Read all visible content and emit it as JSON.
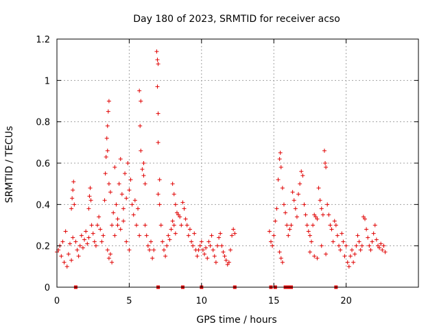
{
  "chart_data": {
    "type": "scatter",
    "title": "Day 180 of 2023, SRMTID for receiver acso",
    "xlabel": "GPS time / hours",
    "ylabel": "SRMTID / TECUs",
    "xlim": [
      0,
      25
    ],
    "ylim": [
      0,
      1.2
    ],
    "grid": true,
    "legend": "none",
    "marker": "+",
    "color": "#e00000",
    "x_ticks": [
      {
        "value": 0,
        "label": "0"
      },
      {
        "value": 5,
        "label": "5"
      },
      {
        "value": 10,
        "label": "10"
      },
      {
        "value": 15,
        "label": "15"
      },
      {
        "value": 20,
        "label": "20"
      }
    ],
    "y_ticks": [
      {
        "value": 0,
        "label": "0"
      },
      {
        "value": 0.2,
        "label": "0.2"
      },
      {
        "value": 0.4,
        "label": "0.4"
      },
      {
        "value": 0.6,
        "label": "0.6"
      },
      {
        "value": 0.8,
        "label": "0.8"
      },
      {
        "value": 1.0,
        "label": "1"
      },
      {
        "value": 1.2,
        "label": "1.2"
      }
    ],
    "series": [
      {
        "name": "SRMTID",
        "points": [
          [
            0.0,
            0.17
          ],
          [
            0.1,
            0.18
          ],
          [
            0.2,
            0.2
          ],
          [
            0.3,
            0.15
          ],
          [
            0.4,
            0.22
          ],
          [
            0.5,
            0.12
          ],
          [
            0.6,
            0.27
          ],
          [
            0.7,
            0.1
          ],
          [
            0.8,
            0.16
          ],
          [
            0.9,
            0.21
          ],
          [
            1.0,
            0.13
          ],
          [
            1.1,
            0.24
          ],
          [
            1.0,
            0.38
          ],
          [
            1.05,
            0.43
          ],
          [
            1.1,
            0.47
          ],
          [
            1.15,
            0.51
          ],
          [
            1.2,
            0.4
          ],
          [
            1.3,
            0.22
          ],
          [
            1.4,
            0.18
          ],
          [
            1.5,
            0.15
          ],
          [
            1.6,
            0.2
          ],
          [
            1.7,
            0.25
          ],
          [
            1.8,
            0.19
          ],
          [
            1.9,
            0.23
          ],
          [
            2.0,
            0.27
          ],
          [
            2.1,
            0.21
          ],
          [
            2.2,
            0.24
          ],
          [
            2.2,
            0.38
          ],
          [
            2.25,
            0.44
          ],
          [
            2.3,
            0.48
          ],
          [
            2.35,
            0.42
          ],
          [
            2.4,
            0.3
          ],
          [
            2.5,
            0.26
          ],
          [
            2.6,
            0.22
          ],
          [
            2.7,
            0.2
          ],
          [
            2.8,
            0.3
          ],
          [
            2.9,
            0.34
          ],
          [
            3.0,
            0.28
          ],
          [
            3.1,
            0.22
          ],
          [
            3.2,
            0.25
          ],
          [
            3.3,
            0.42
          ],
          [
            3.35,
            0.55
          ],
          [
            3.4,
            0.63
          ],
          [
            3.45,
            0.72
          ],
          [
            3.5,
            0.78
          ],
          [
            3.55,
            0.85
          ],
          [
            3.6,
            0.9
          ],
          [
            3.5,
            0.66
          ],
          [
            3.6,
            0.5
          ],
          [
            3.7,
            0.46
          ],
          [
            3.5,
            0.18
          ],
          [
            3.6,
            0.14
          ],
          [
            3.7,
            0.16
          ],
          [
            3.8,
            0.12
          ],
          [
            3.8,
            0.3
          ],
          [
            3.9,
            0.36
          ],
          [
            4.0,
            0.58
          ],
          [
            4.1,
            0.4
          ],
          [
            4.2,
            0.33
          ],
          [
            4.3,
            0.5
          ],
          [
            4.4,
            0.62
          ],
          [
            4.5,
            0.45
          ],
          [
            4.6,
            0.38
          ],
          [
            4.7,
            0.55
          ],
          [
            4.8,
            0.43
          ],
          [
            4.9,
            0.6
          ],
          [
            4.0,
            0.25
          ],
          [
            4.2,
            0.3
          ],
          [
            4.4,
            0.28
          ],
          [
            4.6,
            0.32
          ],
          [
            4.8,
            0.22
          ],
          [
            5.0,
            0.18
          ],
          [
            5.0,
            0.47
          ],
          [
            5.1,
            0.52
          ],
          [
            5.2,
            0.4
          ],
          [
            5.3,
            0.35
          ],
          [
            5.4,
            0.42
          ],
          [
            5.5,
            0.3
          ],
          [
            5.6,
            0.38
          ],
          [
            5.7,
            0.25
          ],
          [
            5.7,
            0.95
          ],
          [
            5.8,
            0.9
          ],
          [
            5.75,
            0.78
          ],
          [
            5.8,
            0.66
          ],
          [
            5.9,
            0.57
          ],
          [
            6.0,
            0.54
          ],
          [
            6.1,
            0.5
          ],
          [
            6.0,
            0.6
          ],
          [
            6.1,
            0.3
          ],
          [
            6.2,
            0.25
          ],
          [
            6.3,
            0.2
          ],
          [
            6.4,
            0.18
          ],
          [
            6.5,
            0.22
          ],
          [
            6.6,
            0.14
          ],
          [
            6.7,
            0.18
          ],
          [
            6.9,
            1.14
          ],
          [
            6.95,
            1.1
          ],
          [
            7.0,
            1.08
          ],
          [
            6.95,
            0.97
          ],
          [
            7.0,
            0.84
          ],
          [
            7.0,
            0.7
          ],
          [
            7.1,
            0.52
          ],
          [
            7.0,
            0.45
          ],
          [
            7.1,
            0.4
          ],
          [
            7.2,
            0.3
          ],
          [
            7.3,
            0.22
          ],
          [
            7.4,
            0.18
          ],
          [
            7.5,
            0.15
          ],
          [
            7.6,
            0.2
          ],
          [
            7.7,
            0.25
          ],
          [
            7.8,
            0.23
          ],
          [
            7.9,
            0.28
          ],
          [
            8.0,
            0.32
          ],
          [
            8.1,
            0.3
          ],
          [
            8.2,
            0.26
          ],
          [
            8.0,
            0.5
          ],
          [
            8.1,
            0.45
          ],
          [
            8.2,
            0.4
          ],
          [
            8.3,
            0.36
          ],
          [
            8.4,
            0.35
          ],
          [
            8.5,
            0.34
          ],
          [
            8.6,
            0.3
          ],
          [
            8.7,
            0.41
          ],
          [
            8.8,
            0.38
          ],
          [
            8.9,
            0.33
          ],
          [
            9.0,
            0.3
          ],
          [
            9.1,
            0.25
          ],
          [
            9.2,
            0.28
          ],
          [
            9.3,
            0.22
          ],
          [
            9.4,
            0.2
          ],
          [
            9.5,
            0.26
          ],
          [
            9.6,
            0.18
          ],
          [
            9.7,
            0.15
          ],
          [
            9.8,
            0.18
          ],
          [
            9.9,
            0.2
          ],
          [
            10.0,
            0.22
          ],
          [
            10.1,
            0.18
          ],
          [
            10.2,
            0.16
          ],
          [
            10.3,
            0.19
          ],
          [
            10.4,
            0.14
          ],
          [
            10.5,
            0.22
          ],
          [
            10.6,
            0.2
          ],
          [
            10.7,
            0.25
          ],
          [
            10.8,
            0.18
          ],
          [
            10.9,
            0.15
          ],
          [
            11.0,
            0.12
          ],
          [
            11.1,
            0.2
          ],
          [
            11.2,
            0.24
          ],
          [
            11.3,
            0.26
          ],
          [
            11.4,
            0.2
          ],
          [
            11.5,
            0.17
          ],
          [
            11.6,
            0.15
          ],
          [
            11.7,
            0.13
          ],
          [
            11.8,
            0.11
          ],
          [
            11.9,
            0.12
          ],
          [
            12.0,
            0.18
          ],
          [
            12.1,
            0.25
          ],
          [
            12.2,
            0.28
          ],
          [
            12.3,
            0.26
          ],
          [
            14.7,
            0.27
          ],
          [
            14.8,
            0.22
          ],
          [
            14.9,
            0.2
          ],
          [
            15.0,
            0.25
          ],
          [
            15.1,
            0.32
          ],
          [
            15.2,
            0.38
          ],
          [
            15.3,
            0.52
          ],
          [
            15.4,
            0.62
          ],
          [
            15.45,
            0.65
          ],
          [
            15.5,
            0.58
          ],
          [
            15.6,
            0.48
          ],
          [
            15.4,
            0.17
          ],
          [
            15.5,
            0.14
          ],
          [
            15.6,
            0.12
          ],
          [
            15.7,
            0.4
          ],
          [
            15.8,
            0.36
          ],
          [
            15.9,
            0.3
          ],
          [
            16.0,
            0.25
          ],
          [
            16.1,
            0.28
          ],
          [
            16.2,
            0.3
          ],
          [
            16.3,
            0.46
          ],
          [
            16.4,
            0.42
          ],
          [
            16.5,
            0.38
          ],
          [
            16.6,
            0.34
          ],
          [
            16.7,
            0.45
          ],
          [
            16.8,
            0.5
          ],
          [
            16.9,
            0.56
          ],
          [
            17.0,
            0.54
          ],
          [
            17.1,
            0.4
          ],
          [
            17.2,
            0.35
          ],
          [
            17.3,
            0.3
          ],
          [
            17.4,
            0.27
          ],
          [
            17.5,
            0.25
          ],
          [
            17.6,
            0.22
          ],
          [
            17.7,
            0.3
          ],
          [
            17.8,
            0.35
          ],
          [
            17.9,
            0.34
          ],
          [
            18.0,
            0.33
          ],
          [
            18.1,
            0.48
          ],
          [
            18.2,
            0.42
          ],
          [
            18.3,
            0.38
          ],
          [
            18.4,
            0.35
          ],
          [
            18.5,
            0.66
          ],
          [
            18.55,
            0.6
          ],
          [
            18.6,
            0.58
          ],
          [
            18.7,
            0.4
          ],
          [
            18.8,
            0.35
          ],
          [
            18.9,
            0.3
          ],
          [
            19.0,
            0.28
          ],
          [
            17.5,
            0.17
          ],
          [
            17.8,
            0.15
          ],
          [
            18.0,
            0.14
          ],
          [
            18.3,
            0.2
          ],
          [
            18.6,
            0.16
          ],
          [
            19.1,
            0.22
          ],
          [
            19.2,
            0.32
          ],
          [
            19.3,
            0.3
          ],
          [
            19.4,
            0.25
          ],
          [
            19.5,
            0.2
          ],
          [
            19.6,
            0.18
          ],
          [
            19.7,
            0.26
          ],
          [
            19.8,
            0.22
          ],
          [
            19.9,
            0.15
          ],
          [
            20.0,
            0.2
          ],
          [
            20.1,
            0.12
          ],
          [
            20.2,
            0.1
          ],
          [
            20.3,
            0.15
          ],
          [
            20.4,
            0.18
          ],
          [
            20.5,
            0.12
          ],
          [
            20.6,
            0.16
          ],
          [
            20.7,
            0.2
          ],
          [
            20.8,
            0.25
          ],
          [
            20.9,
            0.22
          ],
          [
            21.0,
            0.18
          ],
          [
            21.1,
            0.2
          ],
          [
            21.2,
            0.34
          ],
          [
            21.3,
            0.33
          ],
          [
            21.4,
            0.28
          ],
          [
            21.5,
            0.24
          ],
          [
            21.6,
            0.2
          ],
          [
            21.7,
            0.18
          ],
          [
            21.8,
            0.22
          ],
          [
            21.9,
            0.26
          ],
          [
            22.0,
            0.3
          ],
          [
            22.1,
            0.23
          ],
          [
            22.2,
            0.2
          ],
          [
            22.3,
            0.19
          ],
          [
            22.4,
            0.21
          ],
          [
            22.5,
            0.18
          ],
          [
            22.6,
            0.2
          ],
          [
            22.7,
            0.17
          ]
        ]
      }
    ],
    "zero_markers_x": [
      1.3,
      7.0,
      8.7,
      10.0,
      12.3,
      14.8,
      15.1,
      15.8,
      16.0,
      16.2,
      19.3
    ]
  }
}
